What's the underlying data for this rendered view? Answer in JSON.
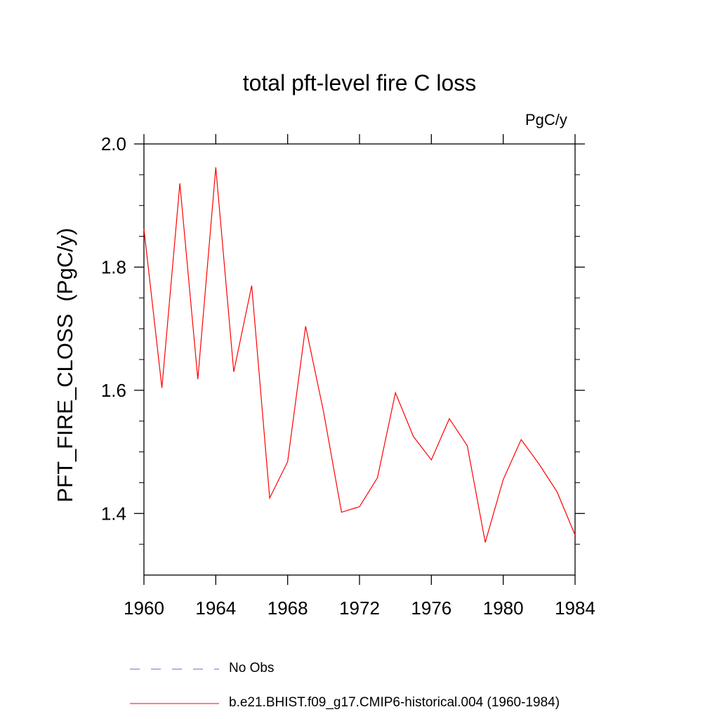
{
  "chart_data": {
    "type": "line",
    "title": "total pft-level fire C loss",
    "units": "PgC/y",
    "ylabel": "PFT_FIRE_CLOSS  (PgC/y)",
    "xlim": [
      1960,
      1984
    ],
    "ylim": [
      1.3,
      2.0
    ],
    "xticks": [
      1960,
      1964,
      1968,
      1972,
      1976,
      1980,
      1984
    ],
    "xtick_labels": [
      "1960",
      "1964",
      "1968",
      "1972",
      "1976",
      "1980",
      "1984"
    ],
    "yticks": [
      1.4,
      1.6,
      1.8,
      2.0
    ],
    "ytick_labels": [
      "1.4",
      "1.6",
      "1.8",
      "2.0"
    ],
    "yminor_step": 0.05,
    "series": [
      {
        "name": "b.e21.BHIST.f09_g17.CMIP6-historical.004 (1960-1984)",
        "color": "#ff0000",
        "x": [
          1960,
          1961,
          1962,
          1963,
          1964,
          1965,
          1966,
          1967,
          1968,
          1969,
          1970,
          1971,
          1972,
          1973,
          1974,
          1975,
          1976,
          1977,
          1978,
          1979,
          1980,
          1981,
          1982,
          1983,
          1984
        ],
        "values": [
          1.862,
          1.604,
          1.936,
          1.618,
          1.962,
          1.63,
          1.77,
          1.425,
          1.484,
          1.704,
          1.565,
          1.402,
          1.411,
          1.458,
          1.596,
          1.525,
          1.487,
          1.554,
          1.51,
          1.353,
          1.455,
          1.52,
          1.48,
          1.435,
          1.365
        ]
      }
    ],
    "legend": [
      {
        "label": "No Obs",
        "style": "dashed",
        "color": "#6666cc"
      },
      {
        "label": "b.e21.BHIST.f09_g17.CMIP6-historical.004 (1960-1984)",
        "style": "solid",
        "color": "#ff0000"
      }
    ],
    "legend_position": "bottom"
  }
}
